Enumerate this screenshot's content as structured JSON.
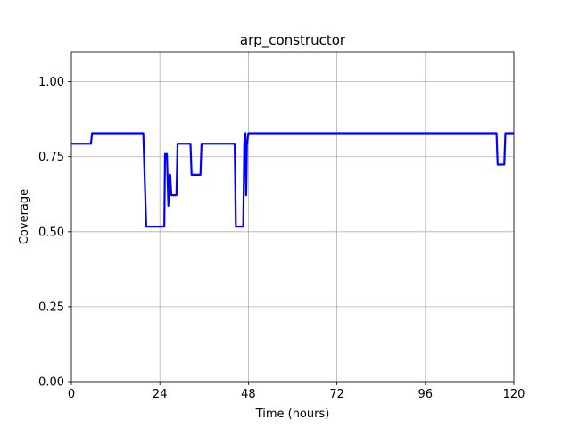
{
  "chart_data": {
    "type": "line",
    "title": "arp_constructor",
    "xlabel": "Time (hours)",
    "ylabel": "Coverage",
    "xlim": [
      0,
      120
    ],
    "ylim": [
      0,
      1.1
    ],
    "xticks": [
      0,
      24,
      48,
      72,
      96,
      120
    ],
    "yticks": [
      0.0,
      0.25,
      0.5,
      0.75,
      1.0
    ],
    "xtick_labels": [
      "0",
      "24",
      "48",
      "72",
      "96",
      "120"
    ],
    "ytick_labels": [
      "0.00",
      "0.25",
      "0.50",
      "0.75",
      "1.00"
    ],
    "grid": true,
    "series": [
      {
        "line_color": "#0000ff",
        "x": [
          0,
          5.3,
          5.6,
          19.5,
          20.3,
          25.2,
          25.4,
          25.9,
          26.3,
          26.6,
          26.8,
          27.1,
          27.4,
          27.8,
          28.5,
          28.8,
          32.3,
          32.6,
          35.0,
          35.3,
          44.3,
          44.6,
          46.6,
          46.9,
          47.2,
          47.4,
          47.6,
          48.0,
          48.3,
          115.3,
          115.6,
          117.4,
          117.7,
          120
        ],
        "y": [
          0.793,
          0.793,
          0.828,
          0.828,
          0.517,
          0.517,
          0.759,
          0.759,
          0.586,
          0.69,
          0.69,
          0.621,
          0.621,
          0.621,
          0.621,
          0.793,
          0.793,
          0.69,
          0.69,
          0.793,
          0.793,
          0.517,
          0.517,
          0.793,
          0.828,
          0.621,
          0.79,
          0.828,
          0.828,
          0.828,
          0.724,
          0.724,
          0.828,
          0.828
        ]
      }
    ]
  }
}
